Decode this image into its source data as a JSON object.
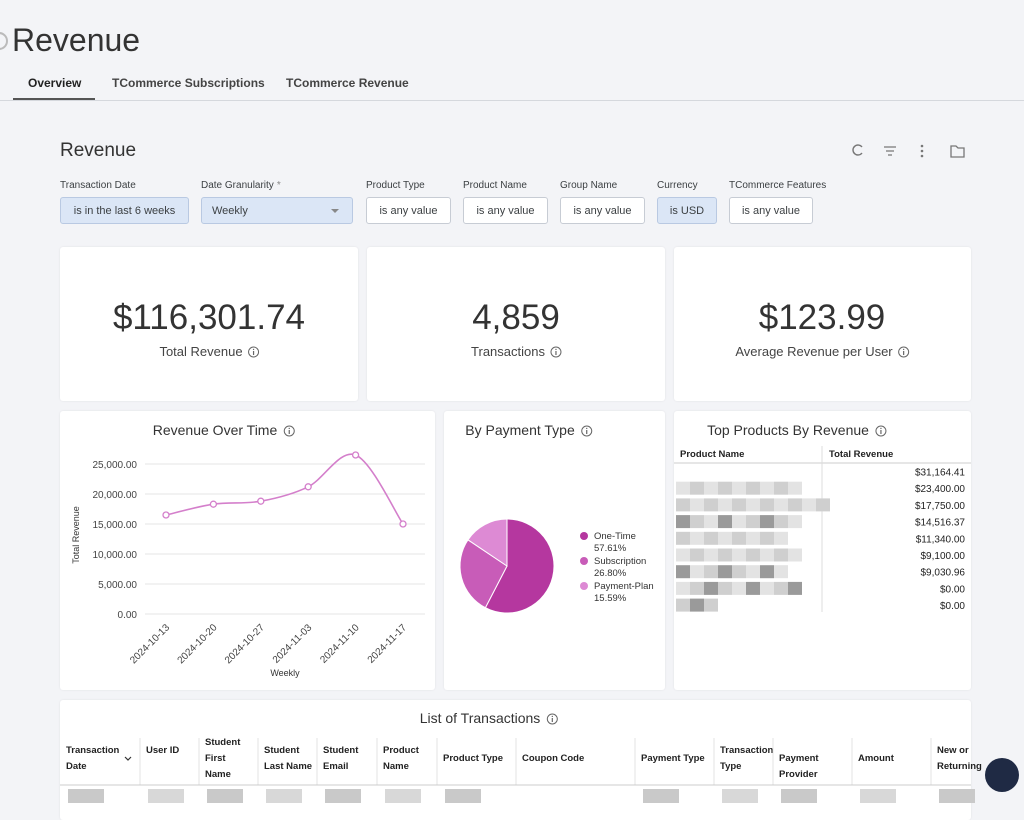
{
  "header": {
    "title": "Revenue"
  },
  "tabs": [
    "Overview",
    "TCommerce Subscriptions",
    "TCommerce Revenue"
  ],
  "dashboard": {
    "title": "Revenue"
  },
  "filters": [
    {
      "label": "Transaction Date",
      "value": "is in the last 6 weeks"
    },
    {
      "label": "Date Granularity",
      "required": "*",
      "value": "Weekly"
    },
    {
      "label": "Product Type",
      "value": "is any value"
    },
    {
      "label": "Product Name",
      "value": "is any value"
    },
    {
      "label": "Group Name",
      "value": "is any value"
    },
    {
      "label": "Currency",
      "value": "is USD"
    },
    {
      "label": "TCommerce Features",
      "value": "is any value"
    }
  ],
  "kpis": [
    {
      "value": "$116,301.74",
      "label": "Total Revenue"
    },
    {
      "value": "4,859",
      "label": "Transactions"
    },
    {
      "value": "$123.99",
      "label": "Average Revenue per User"
    }
  ],
  "chart_data": [
    {
      "type": "line",
      "title": "Revenue Over Time",
      "categories": [
        "2024-10-13",
        "2024-10-20",
        "2024-10-27",
        "2024-11-03",
        "2024-11-10",
        "2024-11-17"
      ],
      "series": [
        {
          "name": "Total Revenue",
          "color": "#d47fcb",
          "values": [
            16500,
            18300,
            18800,
            21200,
            26500,
            15000
          ]
        }
      ],
      "ylabel": "Total Revenue",
      "xlabel": "Weekly",
      "ylim": [
        0,
        27000
      ],
      "yticks": [
        {
          "value": 0,
          "label": "0.00"
        },
        {
          "value": 5000,
          "label": "5,000.00"
        },
        {
          "value": 10000,
          "label": "10,000.00"
        },
        {
          "value": 15000,
          "label": "15,000.00"
        },
        {
          "value": 20000,
          "label": "20,000.00"
        },
        {
          "value": 25000,
          "label": "25,000.00"
        }
      ],
      "grid": true
    },
    {
      "type": "pie",
      "title": "By Payment Type",
      "categories": [
        "One-Time",
        "Subscription",
        "Payment-Plan"
      ],
      "values": [
        57.61,
        26.8,
        15.59
      ],
      "value_labels": [
        "57.61%",
        "26.80%",
        "15.59%"
      ],
      "colors": [
        "#b5379f",
        "#c85cb8",
        "#dd8ad4"
      ]
    }
  ],
  "top_products": {
    "title": "Top Products By Revenue",
    "columns": [
      "Product Name",
      "Total Revenue"
    ],
    "revenues": [
      "$31,164.41",
      "$23,400.00",
      "$17,750.00",
      "$14,516.37",
      "$11,340.00",
      "$9,100.00",
      "$9,030.96",
      "$0.00",
      "$0.00"
    ]
  },
  "transactions": {
    "title": "List of Transactions",
    "columns": [
      "Transaction Date",
      "User ID",
      "Student First Name",
      "Student Last Name",
      "Student Email",
      "Product Name",
      "Product Type",
      "Coupon Code",
      "Payment Type",
      "Transaction Type",
      "Payment Provider",
      "Amount",
      "New or Returning"
    ]
  }
}
